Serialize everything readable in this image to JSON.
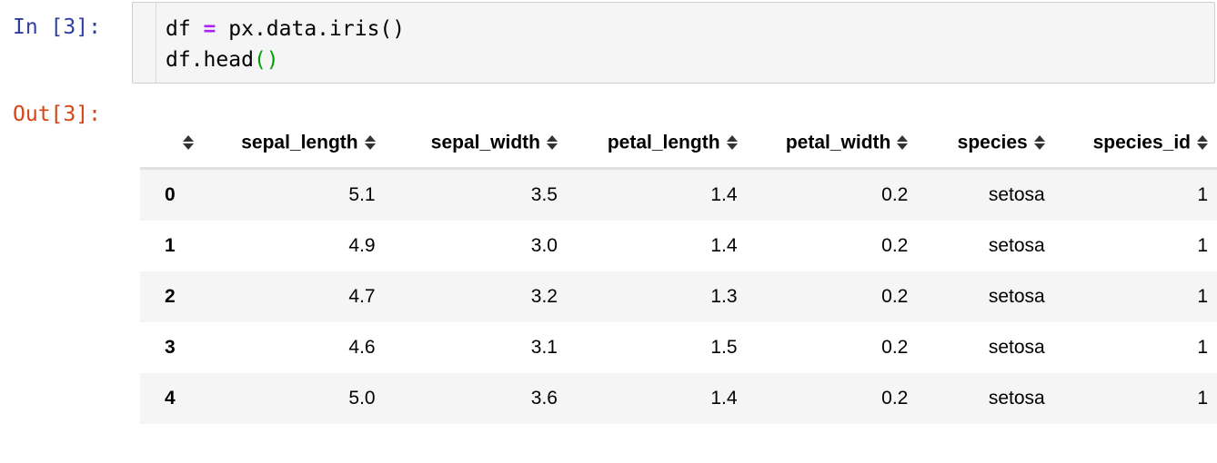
{
  "prompts": {
    "input": "In [3]:",
    "output": "Out[3]:"
  },
  "code": {
    "line1": {
      "before": "df ",
      "operator": "=",
      "after": " px.data.iris()"
    },
    "line2": {
      "before": "df.head",
      "parens": "()"
    }
  },
  "table": {
    "columns": [
      "sepal_length",
      "sepal_width",
      "petal_length",
      "petal_width",
      "species",
      "species_id"
    ],
    "rows": [
      {
        "index": "0",
        "sepal_length": "5.1",
        "sepal_width": "3.5",
        "petal_length": "1.4",
        "petal_width": "0.2",
        "species": "setosa",
        "species_id": "1"
      },
      {
        "index": "1",
        "sepal_length": "4.9",
        "sepal_width": "3.0",
        "petal_length": "1.4",
        "petal_width": "0.2",
        "species": "setosa",
        "species_id": "1"
      },
      {
        "index": "2",
        "sepal_length": "4.7",
        "sepal_width": "3.2",
        "petal_length": "1.3",
        "petal_width": "0.2",
        "species": "setosa",
        "species_id": "1"
      },
      {
        "index": "3",
        "sepal_length": "4.6",
        "sepal_width": "3.1",
        "petal_length": "1.5",
        "petal_width": "0.2",
        "species": "setosa",
        "species_id": "1"
      },
      {
        "index": "4",
        "sepal_length": "5.0",
        "sepal_width": "3.6",
        "petal_length": "1.4",
        "petal_width": "0.2",
        "species": "setosa",
        "species_id": "1"
      }
    ]
  },
  "icons": {
    "sort": "sort-both-icon"
  },
  "colors": {
    "input_prompt": "#303f9f",
    "output_prompt": "#d84315",
    "operator": "#aa22ff",
    "matched_paren": "#00a000",
    "cell_background": "#f5f5f5",
    "striped_row": "#f5f5f5"
  }
}
